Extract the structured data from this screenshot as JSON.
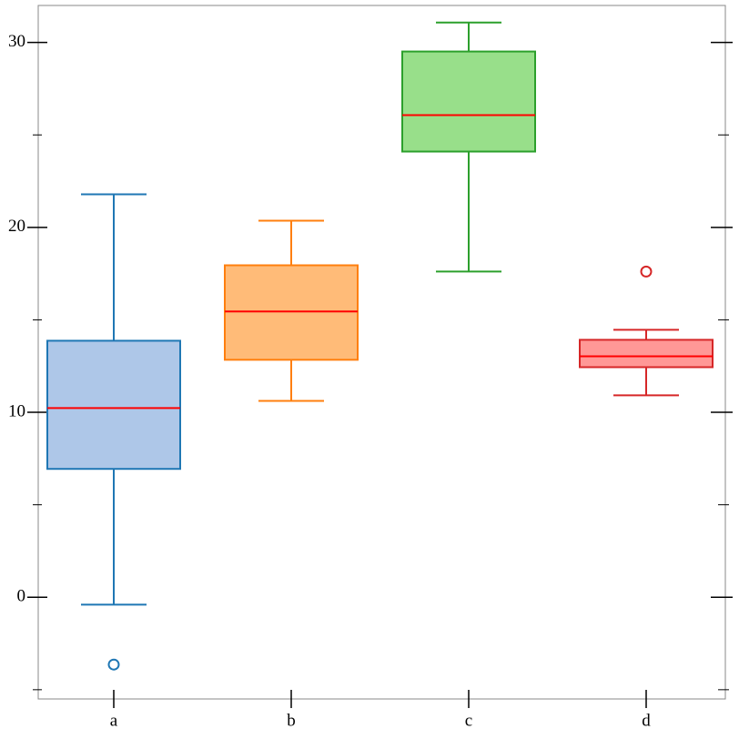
{
  "chart_data": {
    "type": "box",
    "categories": [
      "a",
      "b",
      "c",
      "d"
    ],
    "boxes": [
      {
        "low": -0.4,
        "q1": 6.94,
        "median": 10.23,
        "q3": 13.87,
        "high": 21.79,
        "outliers": [
          -3.64
        ],
        "color": "#1f77b4",
        "fill": "#aec7e8"
      },
      {
        "low": 10.62,
        "q1": 12.84,
        "median": 15.45,
        "q3": 17.95,
        "high": 20.36,
        "outliers": [],
        "color": "#ff7f0e",
        "fill": "#ffbb78"
      },
      {
        "low": 17.61,
        "q1": 24.1,
        "median": 26.07,
        "q3": 29.51,
        "high": 31.08,
        "outliers": [],
        "color": "#2ca02c",
        "fill": "#98df8a"
      },
      {
        "low": 10.92,
        "q1": 12.44,
        "median": 13.03,
        "q3": 13.92,
        "high": 14.46,
        "outliers": [
          17.61
        ],
        "color": "#d62728",
        "fill": "#ff9896"
      }
    ],
    "median_color": "#ff0000",
    "ylim": [
      -5.5,
      32
    ],
    "yticks": [
      0,
      10,
      20,
      30
    ],
    "minor_yticks": [
      -5,
      5,
      15,
      25
    ]
  }
}
